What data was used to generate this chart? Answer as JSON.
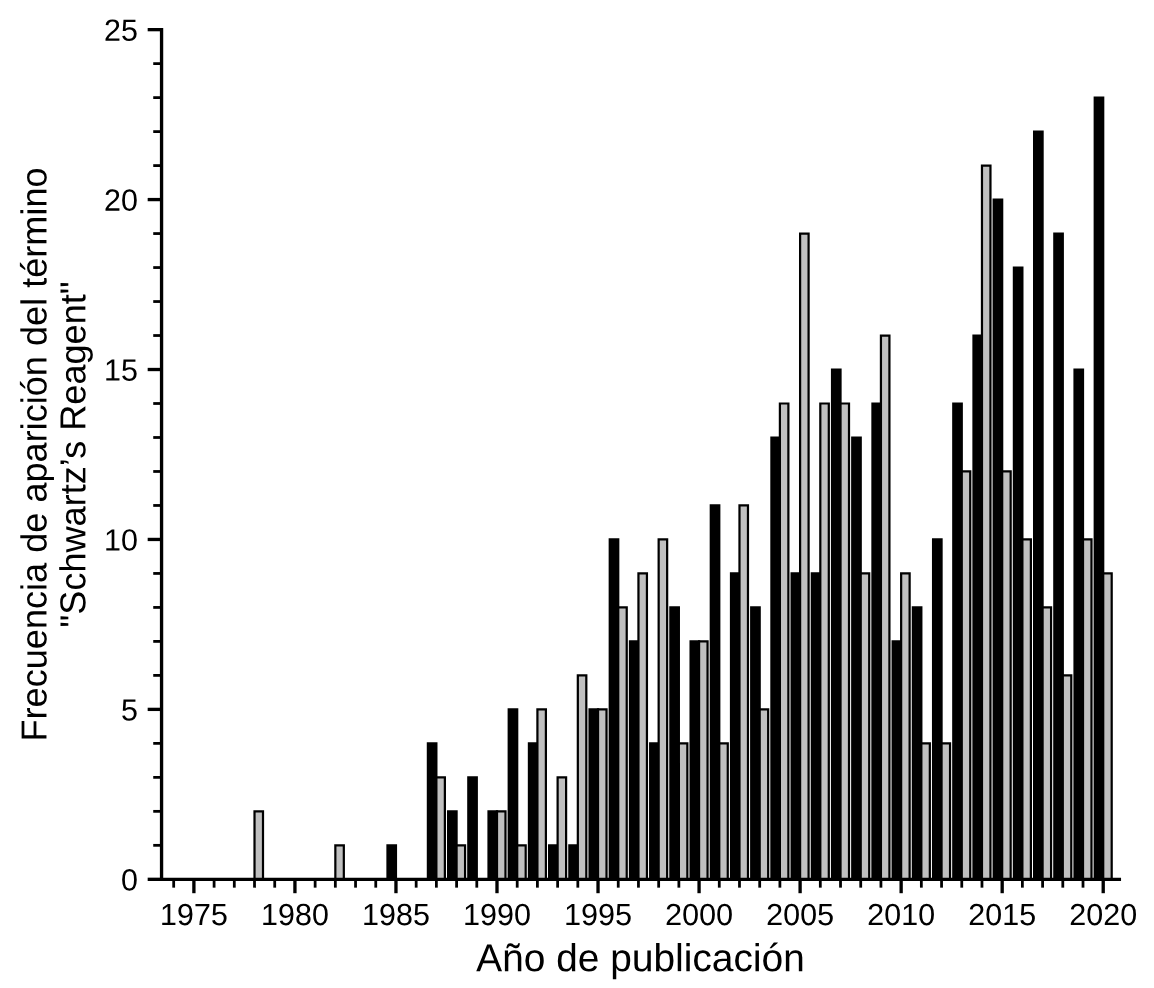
{
  "chart_data": {
    "type": "bar",
    "xlabel": "Año de publicación",
    "ylabel": "Frecuencia de aparición del término\n\"Schwartz’s Reagent\"",
    "x": [
      1975,
      1976,
      1977,
      1978,
      1979,
      1980,
      1981,
      1982,
      1983,
      1984,
      1985,
      1986,
      1987,
      1988,
      1989,
      1990,
      1991,
      1992,
      1993,
      1994,
      1995,
      1996,
      1997,
      1998,
      1999,
      2000,
      2001,
      2002,
      2003,
      2004,
      2005,
      2006,
      2007,
      2008,
      2009,
      2010,
      2011,
      2012,
      2013,
      2014,
      2015,
      2016,
      2017,
      2018,
      2019,
      2020
    ],
    "series": [
      {
        "color": "#000000",
        "values": [
          0,
          0,
          0,
          0,
          0,
          0,
          0,
          0,
          0,
          0,
          1,
          0,
          4,
          2,
          3,
          2,
          5,
          4,
          1,
          1,
          5,
          10,
          7,
          4,
          8,
          7,
          11,
          9,
          8,
          13,
          9,
          9,
          15,
          13,
          14,
          7,
          8,
          10,
          14,
          16,
          20,
          18,
          22,
          19,
          15,
          23
        ]
      },
      {
        "color": "#c0c0c0",
        "values": [
          0,
          0,
          0,
          2,
          0,
          0,
          0,
          1,
          0,
          0,
          0,
          0,
          3,
          1,
          0,
          2,
          1,
          5,
          3,
          6,
          5,
          8,
          9,
          10,
          4,
          7,
          4,
          11,
          5,
          14,
          19,
          14,
          14,
          9,
          16,
          9,
          4,
          4,
          12,
          21,
          12,
          10,
          8,
          6,
          10,
          9
        ]
      }
    ],
    "xlim": [
      1973.4,
      2020.8
    ],
    "xticks": [
      1975,
      1980,
      1985,
      1990,
      1995,
      2000,
      2005,
      2010,
      2015,
      2020
    ],
    "ylim": [
      0,
      25
    ],
    "yticks": [
      0,
      5,
      10,
      15,
      20,
      25
    ],
    "grid": false
  }
}
